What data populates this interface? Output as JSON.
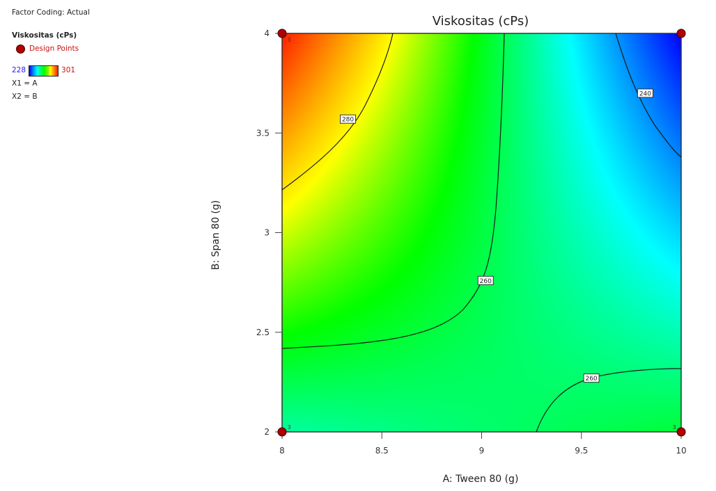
{
  "legend": {
    "factor_coding": "Factor Coding: Actual",
    "response": "Viskositas (cPs)",
    "design_points": "Design Points",
    "scale_min": "228",
    "scale_max": "301",
    "x1": "X1 = A",
    "x2": "X2 = B"
  },
  "chart_data": {
    "type": "heatmap",
    "subtype": "contour",
    "title": "Viskositas (cPs)",
    "xlabel": "A: Tween 80 (g)",
    "ylabel": "B: Span 80 (g)",
    "xlim": [
      8,
      10
    ],
    "ylim": [
      2,
      4
    ],
    "x_ticks": [
      "8",
      "8.5",
      "9",
      "9.5",
      "10"
    ],
    "y_ticks": [
      "2",
      "2.5",
      "3",
      "3.5",
      "4"
    ],
    "color_range": [
      228,
      301
    ],
    "colormap": [
      "#0000ff",
      "#00ffff",
      "#00ff00",
      "#ffff00",
      "#ff0000"
    ],
    "contours": [
      {
        "level": 280,
        "label": "280",
        "label_pos": [
          8.33,
          3.57
        ]
      },
      {
        "level": 260,
        "label": "260",
        "label_pos": [
          9.02,
          2.76
        ]
      },
      {
        "level": 260,
        "label": "260",
        "label_pos": [
          9.55,
          2.27
        ]
      },
      {
        "level": 240,
        "label": "240",
        "label_pos": [
          9.82,
          3.7
        ]
      }
    ],
    "design_points": [
      {
        "x": 8,
        "y": 4,
        "replicates": 3
      },
      {
        "x": 10,
        "y": 4,
        "replicates": 3
      },
      {
        "x": 8,
        "y": 2,
        "replicates": 3
      },
      {
        "x": 10,
        "y": 2,
        "replicates": 3
      }
    ],
    "corner_estimates": {
      "a8_b4": 301,
      "a10_b4": 228,
      "a8_b2": 255,
      "a10_b2": 262
    },
    "grid": false
  }
}
